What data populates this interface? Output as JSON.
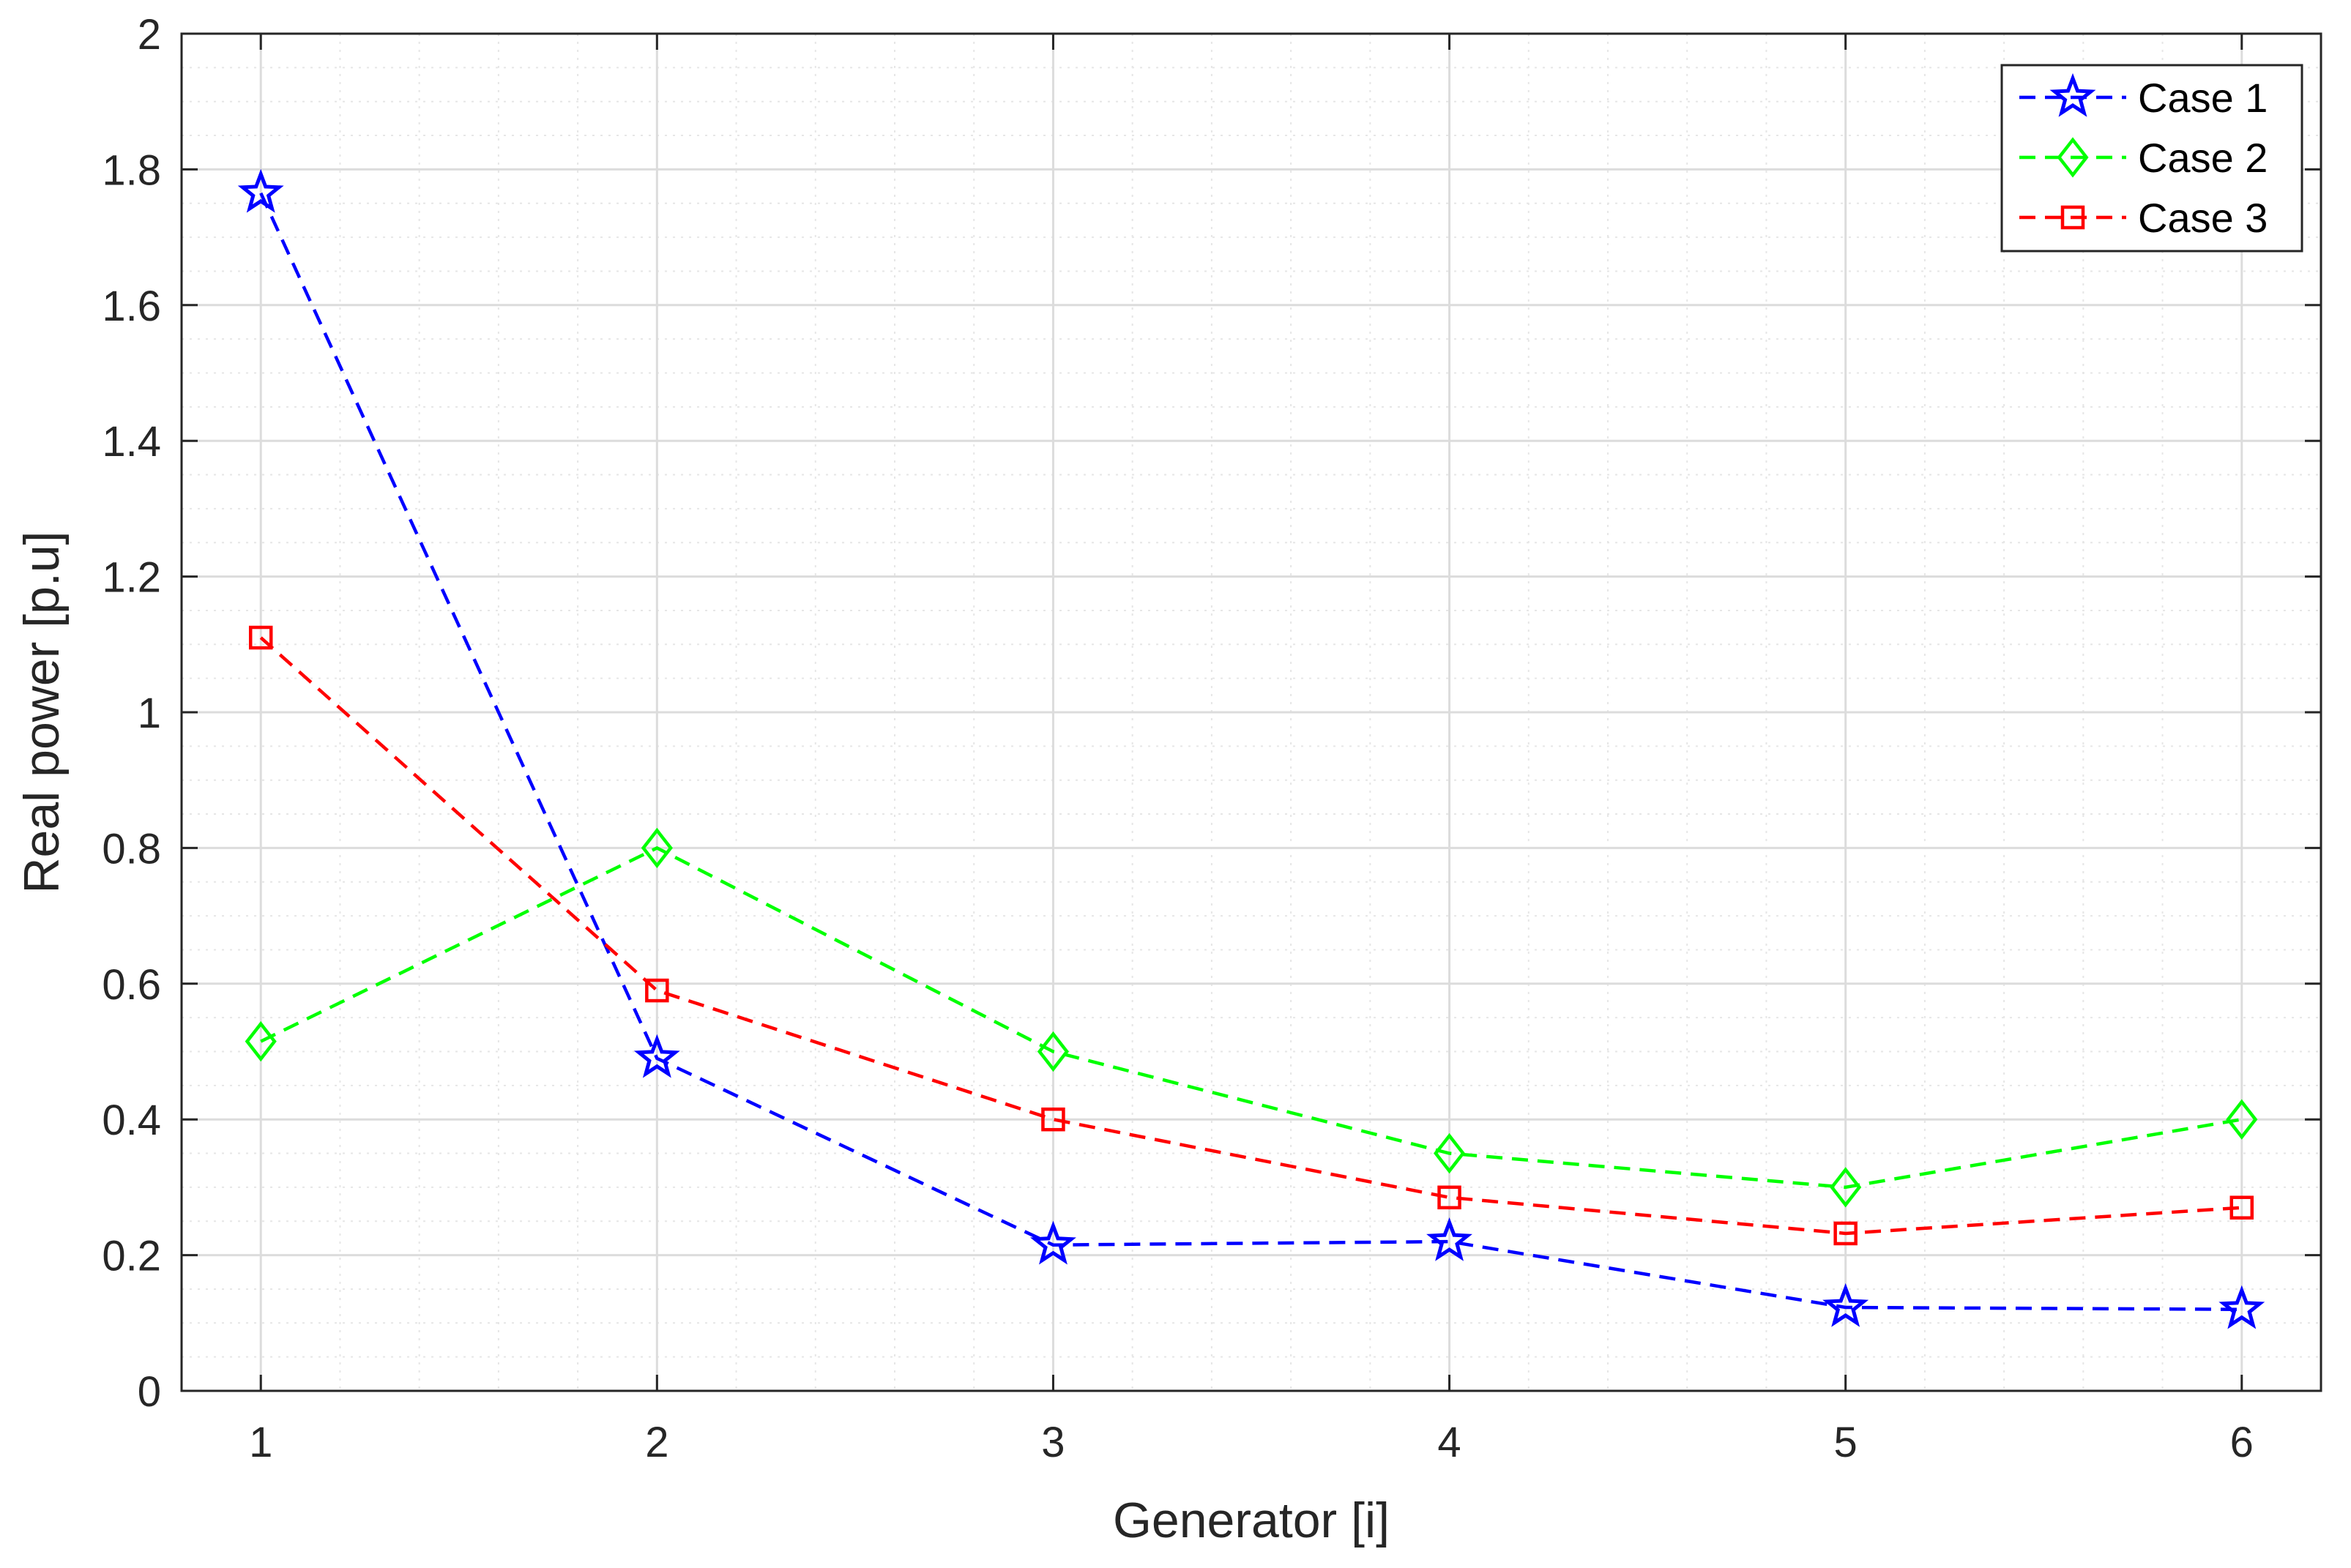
{
  "chart_data": {
    "type": "line",
    "xlabel": "Generator [i]",
    "ylabel": "Real power [p.u]",
    "x": [
      1,
      2,
      3,
      4,
      5,
      6
    ],
    "xlim": [
      0.8,
      6.2
    ],
    "ylim": [
      0,
      2
    ],
    "xticks": [
      1,
      2,
      3,
      4,
      5,
      6
    ],
    "xtick_labels": [
      "1",
      "2",
      "3",
      "4",
      "5",
      "6"
    ],
    "yticks": [
      0,
      0.2,
      0.4,
      0.6,
      0.8,
      1,
      1.2,
      1.4,
      1.6,
      1.8,
      2
    ],
    "ytick_labels": [
      "0",
      "0.2",
      "0.4",
      "0.6",
      "0.8",
      "1",
      "1.2",
      "1.4",
      "1.6",
      "1.8",
      "2"
    ],
    "grid": true,
    "minor_grid": true,
    "legend_position": "top-right",
    "series": [
      {
        "name": "Case 1",
        "values": [
          1.765,
          0.49,
          0.215,
          0.22,
          0.123,
          0.12
        ],
        "color": "#0000ff",
        "marker": "star",
        "line_style": "dashed"
      },
      {
        "name": "Case 2",
        "values": [
          0.515,
          0.8,
          0.5,
          0.35,
          0.3,
          0.4
        ],
        "color": "#00ff00",
        "marker": "diamond",
        "line_style": "dashed"
      },
      {
        "name": "Case 3",
        "values": [
          1.11,
          0.59,
          0.4,
          0.285,
          0.232,
          0.27
        ],
        "color": "#ff0000",
        "marker": "square",
        "line_style": "dashed"
      }
    ]
  }
}
